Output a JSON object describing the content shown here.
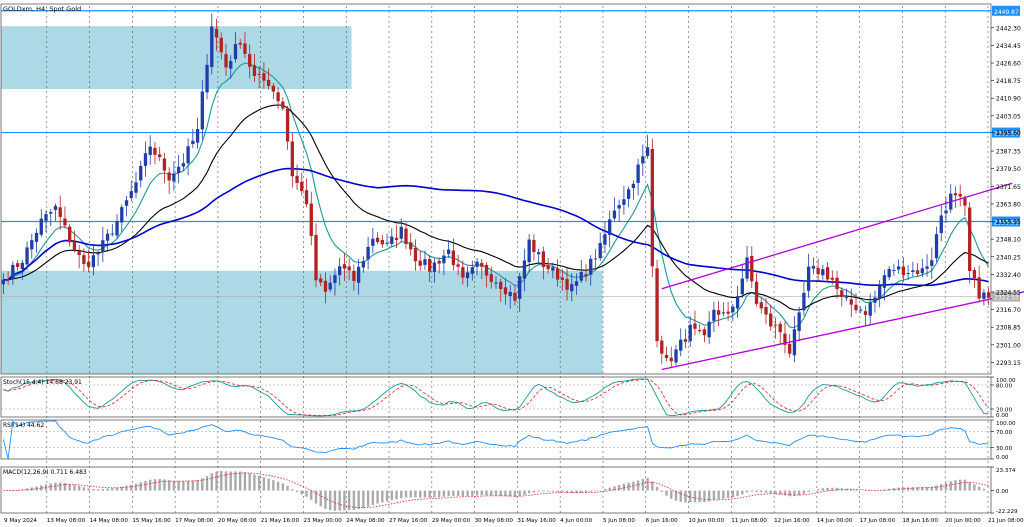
{
  "chart_data": [
    {
      "type": "candlestick",
      "title": "GOLDxm, H4: Spot Gold",
      "price_axis": {
        "ticks": [
          "2449.87",
          "2442.30",
          "2434.45",
          "2426.60",
          "2418.75",
          "2410.90",
          "2403.05",
          "2395.60",
          "2387.35",
          "2379.50",
          "2371.65",
          "2363.80",
          "2355.95",
          "2348.10",
          "2340.25",
          "2332.40",
          "2324.55",
          "2316.70",
          "2308.85",
          "2301.00",
          "2293.15"
        ],
        "ylim": [
          2288,
          2452
        ]
      },
      "time_axis": {
        "ticks": [
          "9 May 2024",
          "13 May 08:00",
          "14 May 08:00",
          "15 May 16:00",
          "17 May 08:00",
          "20 May 08:00",
          "21 May 16:00",
          "23 May 00:00",
          "24 May 08:00",
          "27 May 16:00",
          "29 May 00:00",
          "30 May 08:00",
          "31 May 16:00",
          "4 Jun 00:00",
          "5 Jun 08:00",
          "6 Jun 16:00",
          "10 Jun 00:00",
          "11 Jun 08:00",
          "12 Jun 16:00",
          "14 Jun 00:00",
          "17 Jun 08:00",
          "18 Jun 16:00",
          "20 Jun 00:00",
          "21 Jun 08:00"
        ]
      },
      "horizontal_levels": [
        {
          "price": 2449.87,
          "label": "2449.87",
          "color": "#1e90ff"
        },
        {
          "price": 2395.6,
          "label": "2395.60",
          "color": "#1e90ff"
        },
        {
          "price": 2355.95,
          "label": "2355.95",
          "color": "#1e90ff"
        }
      ],
      "current_price": {
        "price": 2322.5,
        "label": "2322.55"
      },
      "zones": [
        {
          "start_bar": 0,
          "end_bar": 74,
          "top": 2443,
          "bottom": 2415,
          "color": "#add8e6"
        },
        {
          "start_bar": 0,
          "end_bar": 127,
          "top": 2334,
          "bottom": 2288,
          "color": "#add8e6"
        }
      ],
      "channel": {
        "color": "#b000d8",
        "upper": {
          "start_bar": 139,
          "start_price": 2326,
          "end_bar": 213,
          "end_price": 2373
        },
        "lower": {
          "start_bar": 139,
          "start_price": 2290,
          "end_bar": 234,
          "end_price": 2333
        }
      },
      "moving_averages": [
        {
          "name": "MA fast",
          "color": "#1a9a9a"
        },
        {
          "name": "MA slow",
          "color": "#000000"
        },
        {
          "name": "MA long",
          "color": "#0000cc"
        }
      ],
      "colors": {
        "bull": "#1f3fa8",
        "bear": "#b22222",
        "grid": "#c8c8c8"
      },
      "key_points": [
        [
          0,
          2330
        ],
        [
          4,
          2339
        ],
        [
          8,
          2356
        ],
        [
          11,
          2362
        ],
        [
          14,
          2348
        ],
        [
          17,
          2336
        ],
        [
          20,
          2342
        ],
        [
          24,
          2356
        ],
        [
          28,
          2373
        ],
        [
          31,
          2390
        ],
        [
          35,
          2376
        ],
        [
          38,
          2383
        ],
        [
          41,
          2396
        ],
        [
          44,
          2444
        ],
        [
          47,
          2425
        ],
        [
          50,
          2437
        ],
        [
          53,
          2420
        ],
        [
          56,
          2418
        ],
        [
          59,
          2407
        ],
        [
          61,
          2377
        ],
        [
          64,
          2365
        ],
        [
          66,
          2330
        ],
        [
          68,
          2324
        ],
        [
          71,
          2336
        ],
        [
          74,
          2330
        ],
        [
          78,
          2349
        ],
        [
          81,
          2345
        ],
        [
          84,
          2352
        ],
        [
          87,
          2340
        ],
        [
          90,
          2335
        ],
        [
          94,
          2343
        ],
        [
          97,
          2329
        ],
        [
          100,
          2336
        ],
        [
          104,
          2330
        ],
        [
          108,
          2322
        ],
        [
          111,
          2347
        ],
        [
          114,
          2337
        ],
        [
          117,
          2332
        ],
        [
          120,
          2326
        ],
        [
          123,
          2334
        ],
        [
          126,
          2344
        ],
        [
          129,
          2362
        ],
        [
          132,
          2370
        ],
        [
          134,
          2380
        ],
        [
          136,
          2388
        ],
        [
          137,
          2336
        ],
        [
          138,
          2305
        ],
        [
          140,
          2293
        ],
        [
          142,
          2298
        ],
        [
          145,
          2308
        ],
        [
          148,
          2303
        ],
        [
          150,
          2317
        ],
        [
          153,
          2313
        ],
        [
          155,
          2324
        ],
        [
          157,
          2338
        ],
        [
          159,
          2320
        ],
        [
          162,
          2310
        ],
        [
          164,
          2307
        ],
        [
          166,
          2298
        ],
        [
          168,
          2313
        ],
        [
          170,
          2334
        ],
        [
          173,
          2334
        ],
        [
          175,
          2330
        ],
        [
          177,
          2321
        ],
        [
          180,
          2318
        ],
        [
          182,
          2316
        ],
        [
          184,
          2322
        ],
        [
          186,
          2332
        ],
        [
          188,
          2335
        ],
        [
          191,
          2334
        ],
        [
          194,
          2334
        ],
        [
          196,
          2340
        ],
        [
          198,
          2359
        ],
        [
          200,
          2367
        ],
        [
          202,
          2365
        ],
        [
          203,
          2361
        ],
        [
          204,
          2333
        ],
        [
          206,
          2324
        ],
        [
          208,
          2322
        ]
      ],
      "total_bars": 209
    },
    {
      "type": "line",
      "title": "Stoch(15,4,4) 14.68 23.91",
      "axis_ticks": [
        "100.00",
        "80.00",
        "20.00",
        "0.00"
      ],
      "ylim": [
        0,
        100
      ],
      "levels": [
        80,
        20
      ],
      "series": [
        {
          "name": "Main",
          "color": "#1a9a9a",
          "style": "solid"
        },
        {
          "name": "Signal",
          "color": "#dd2222",
          "style": "dashed"
        }
      ],
      "last_values": [
        14.68,
        23.91
      ]
    },
    {
      "type": "line",
      "title": "RSI(14) 44.62",
      "axis_ticks": [
        "100.00",
        "70.00",
        "30.00",
        "0.00"
      ],
      "ylim": [
        0,
        100
      ],
      "levels": [
        70,
        30
      ],
      "series": [
        {
          "name": "RSI",
          "color": "#1e90ff"
        }
      ],
      "last_value": 44.62
    },
    {
      "type": "bar",
      "title": "MACD(12,26,9) 0.711 6.483",
      "axis_ticks": [
        "23.374",
        "0.00",
        "-22.229"
      ],
      "ylim": [
        -22.229,
        23.374
      ],
      "series": [
        {
          "name": "MACD",
          "color": "#a9a9a9"
        },
        {
          "name": "Signal",
          "color": "#dd2222",
          "style": "dotted"
        }
      ],
      "last_values": [
        0.711,
        6.483
      ]
    }
  ]
}
